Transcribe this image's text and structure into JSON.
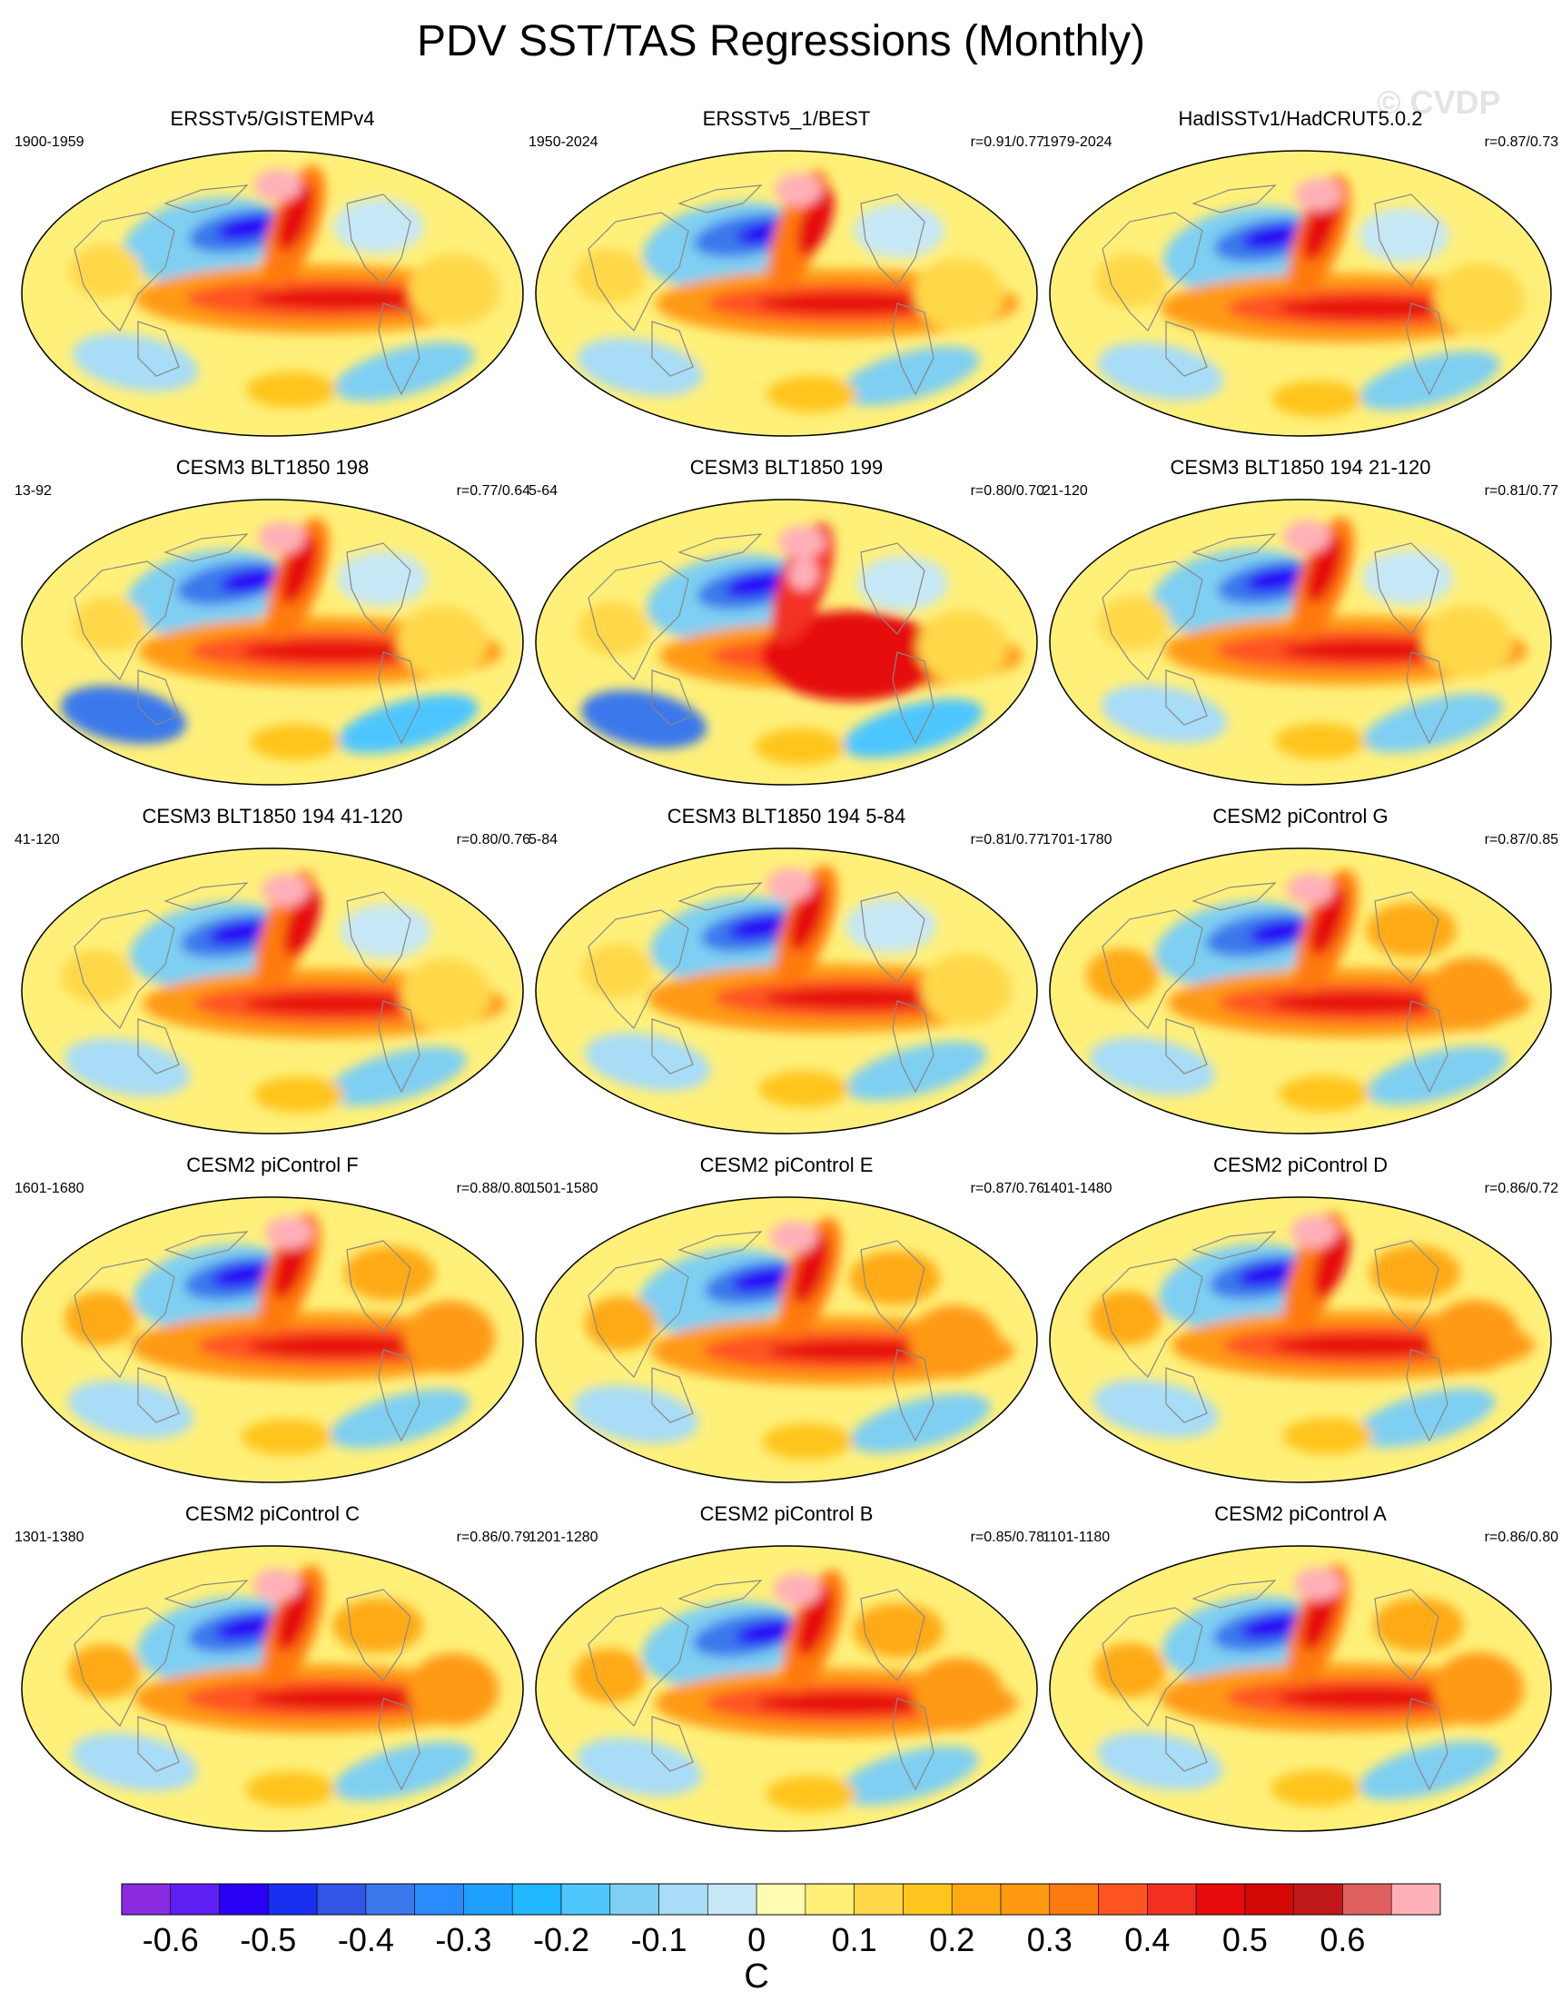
{
  "title": "PDV SST/TAS Regressions (Monthly)",
  "watermark": "© CVDP",
  "panels": [
    {
      "title": "ERSSTv5/GISTEMPv4",
      "period": "1900-1959",
      "corr": "",
      "style": 0
    },
    {
      "title": "ERSSTv5_1/BEST",
      "period": "1950-2024",
      "corr": "r=0.91/0.77",
      "style": 1
    },
    {
      "title": "HadISSTv1/HadCRUT5.0.2",
      "period": "1979-2024",
      "corr": "r=0.87/0.73",
      "style": 2
    },
    {
      "title": "CESM3 BLT1850 198",
      "period": "13-92",
      "corr": "r=0.77/0.64",
      "style": 3
    },
    {
      "title": "CESM3 BLT1850 199",
      "period": "5-64",
      "corr": "r=0.80/0.70",
      "style": 4
    },
    {
      "title": "CESM3 BLT1850 194 21-120",
      "period": "21-120",
      "corr": "r=0.81/0.77",
      "style": 5
    },
    {
      "title": "CESM3 BLT1850 194 41-120",
      "period": "41-120",
      "corr": "r=0.80/0.76",
      "style": 6
    },
    {
      "title": "CESM3 BLT1850 194 5-84",
      "period": "5-84",
      "corr": "r=0.81/0.77",
      "style": 7
    },
    {
      "title": "CESM2 piControl G",
      "period": "1701-1780",
      "corr": "r=0.87/0.85",
      "style": 8
    },
    {
      "title": "CESM2 piControl F",
      "period": "1601-1680",
      "corr": "r=0.88/0.80",
      "style": 9
    },
    {
      "title": "CESM2 piControl E",
      "period": "1501-1580",
      "corr": "r=0.87/0.76",
      "style": 10
    },
    {
      "title": "CESM2 piControl D",
      "period": "1401-1480",
      "corr": "r=0.86/0.72",
      "style": 11
    },
    {
      "title": "CESM2 piControl C",
      "period": "1301-1380",
      "corr": "r=0.86/0.79",
      "style": 12
    },
    {
      "title": "CESM2 piControl B",
      "period": "1201-1280",
      "corr": "r=0.85/0.78",
      "style": 13
    },
    {
      "title": "CESM2 piControl A",
      "period": "1101-1180",
      "corr": "r=0.86/0.80",
      "style": 14
    }
  ],
  "colorbar": {
    "colors": [
      "#8a2be2",
      "#5d1ff2",
      "#2a00f5",
      "#1a30f0",
      "#3355e6",
      "#3b78ec",
      "#2a8aff",
      "#1fa0ff",
      "#21b8ff",
      "#4ec6ff",
      "#7fcff2",
      "#a8dcf7",
      "#c6e7f5",
      "#fffbb0",
      "#fff07a",
      "#ffd84a",
      "#ffc51f",
      "#ffaa14",
      "#ff9a12",
      "#ff7a10",
      "#ff5522",
      "#f23020",
      "#e60c0c",
      "#d50808",
      "#c01818",
      "#e06060",
      "#ffb0b8"
    ],
    "tick_labels": [
      "-0.6",
      "-0.5",
      "-0.4",
      "-0.3",
      "-0.2",
      "-0.1",
      "0",
      "0.1",
      "0.2",
      "0.3",
      "0.4",
      "0.5",
      "0.6"
    ],
    "unit": "C"
  }
}
